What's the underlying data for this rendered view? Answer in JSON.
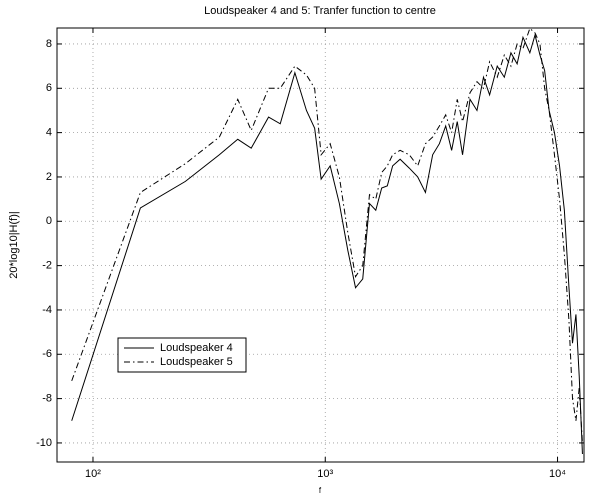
{
  "chart_data": {
    "type": "line",
    "title": "Loudspeaker 4 and 5: Tranfer function to centre",
    "xlabel": "f",
    "ylabel": "20*log10|H(f)|",
    "xscale": "log",
    "grid": true,
    "legend": "lower left",
    "xlim": [
      70,
      13000
    ],
    "ylim": [
      -10.86,
      8.72
    ],
    "xticks": [
      {
        "value": 100,
        "label": "10²"
      },
      {
        "value": 1000,
        "label": "10³"
      },
      {
        "value": 10000,
        "label": "10⁴"
      }
    ],
    "yticks": [
      -10,
      -8,
      -6,
      -4,
      -2,
      0,
      2,
      4,
      6,
      8
    ],
    "x": [
      81,
      160,
      250,
      350,
      420,
      480,
      570,
      640,
      740,
      830,
      900,
      960,
      1050,
      1150,
      1250,
      1350,
      1450,
      1550,
      1650,
      1750,
      1850,
      1950,
      2100,
      2300,
      2500,
      2700,
      2900,
      3100,
      3300,
      3500,
      3700,
      3900,
      4200,
      4500,
      4800,
      5100,
      5500,
      5900,
      6300,
      6700,
      7100,
      7600,
      8000,
      8400,
      8800,
      9200,
      9700,
      10200,
      10700,
      11200,
      11600,
      12000,
      12400,
      12800
    ],
    "series": [
      {
        "name": "Loudspeaker 4",
        "color": "#000000",
        "dash": "solid",
        "values": [
          -9,
          0.6,
          1.8,
          3.0,
          3.7,
          3.3,
          4.7,
          4.4,
          6.7,
          5.0,
          4.2,
          1.9,
          2.5,
          0.8,
          -1.3,
          -3.0,
          -2.6,
          0.8,
          0.5,
          1.5,
          1.6,
          2.5,
          2.8,
          2.4,
          2.0,
          1.3,
          3.0,
          3.5,
          4.3,
          3.2,
          4.5,
          3.0,
          5.5,
          5.0,
          6.5,
          5.7,
          7.0,
          6.5,
          7.6,
          7.1,
          8.3,
          7.6,
          8.4,
          7.5,
          6.8,
          5.0,
          4.0,
          2.5,
          0.5,
          -3.0,
          -5.5,
          -4.2,
          -7.0,
          -10.5
        ]
      },
      {
        "name": "Loudspeaker 5",
        "color": "#000000",
        "dash": "dashdot",
        "values": [
          -7.2,
          1.3,
          2.6,
          3.8,
          5.5,
          4.1,
          6.0,
          6.0,
          7.0,
          6.6,
          6.0,
          3.0,
          3.5,
          2.0,
          -0.5,
          -2.5,
          -2.0,
          1.2,
          1.0,
          2.2,
          2.5,
          3.0,
          3.2,
          3.0,
          2.5,
          3.5,
          3.8,
          4.3,
          4.8,
          4.0,
          5.5,
          4.5,
          5.8,
          6.3,
          6.0,
          7.2,
          6.5,
          7.5,
          7.0,
          8.0,
          7.8,
          8.7,
          8.5,
          8.0,
          6.0,
          5.0,
          3.0,
          1.0,
          -1.5,
          -4.5,
          -8.0,
          -9.0,
          -7.5,
          -10.0
        ]
      }
    ]
  }
}
